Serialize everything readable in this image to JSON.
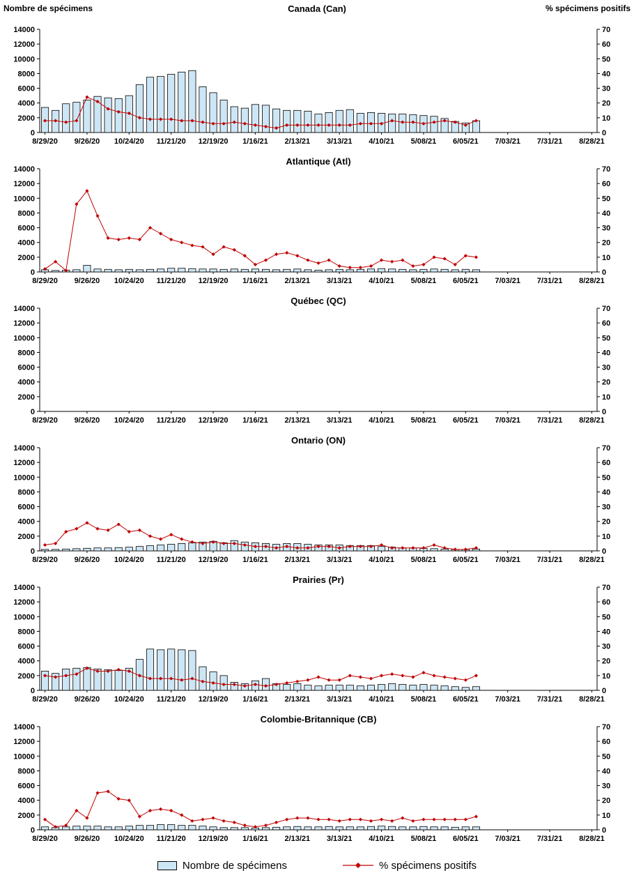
{
  "page": {
    "left_axis_title": "Nombre de spécimens",
    "right_axis_title": "% spécimens positifs"
  },
  "legend": {
    "bars_label": "Nombre de spécimens",
    "line_label": "% spécimens positifs"
  },
  "colors": {
    "bar_fill": "#CDE6F5",
    "bar_border": "#000000",
    "line": "#C00000"
  },
  "axis": {
    "n_slots": 53,
    "x_tick_every": 4,
    "x_tick_labels": [
      "8/29/20",
      "9/26/20",
      "10/24/20",
      "11/21/20",
      "12/19/20",
      "1/16/21",
      "2/13/21",
      "3/13/21",
      "4/10/21",
      "5/08/21",
      "6/05/21",
      "7/03/21",
      "7/31/21",
      "8/28/21"
    ],
    "left": {
      "min": 0,
      "max": 14000,
      "step": 2000
    },
    "right": {
      "min": 0,
      "max": 70,
      "step": 10
    },
    "grid": false
  },
  "x_weekly": [
    "8/29/20",
    "9/05/20",
    "9/12/20",
    "9/19/20",
    "9/26/20",
    "10/03/20",
    "10/10/20",
    "10/17/20",
    "10/24/20",
    "10/31/20",
    "11/07/20",
    "11/14/20",
    "11/21/20",
    "11/28/20",
    "12/05/20",
    "12/12/20",
    "12/19/20",
    "12/26/20",
    "1/02/21",
    "1/09/21",
    "1/16/21",
    "1/23/21",
    "1/30/21",
    "2/06/21",
    "2/13/21",
    "2/20/21",
    "2/27/21",
    "3/06/21",
    "3/13/21",
    "3/20/21",
    "3/27/21",
    "4/03/21",
    "4/10/21",
    "4/17/21",
    "4/24/21",
    "5/01/21",
    "5/08/21",
    "5/15/21",
    "5/22/21",
    "5/29/21",
    "6/05/21",
    "6/12/21"
  ],
  "chart_data": [
    {
      "type": "bar+line",
      "title": "Canada (Can)",
      "bar_series": "Nombre de spécimens",
      "line_series": "% spécimens positifs",
      "bars": [
        3400,
        3000,
        3900,
        4100,
        4400,
        4900,
        4700,
        4600,
        5000,
        6500,
        7500,
        7600,
        7900,
        8200,
        8400,
        6200,
        5400,
        4400,
        3500,
        3300,
        3800,
        3700,
        3200,
        3000,
        3000,
        2900,
        2500,
        2700,
        3000,
        3100,
        2600,
        2700,
        2600,
        2500,
        2500,
        2400,
        2300,
        2200,
        1900,
        1500,
        1300,
        1600
      ],
      "line": [
        8,
        8,
        7,
        8,
        24,
        21,
        16,
        14,
        13,
        10,
        9,
        9,
        9,
        8,
        8,
        7,
        6,
        6,
        7,
        6,
        5,
        4,
        3,
        5,
        5,
        5,
        5,
        5,
        5,
        5,
        6,
        6,
        6,
        8,
        7,
        7,
        6,
        7,
        8,
        7,
        5,
        8
      ]
    },
    {
      "type": "bar+line",
      "title": "Atlantique (Atl)",
      "bar_series": "Nombre de spécimens",
      "line_series": "% spécimens positifs",
      "bars": [
        300,
        200,
        250,
        300,
        900,
        400,
        350,
        300,
        350,
        300,
        350,
        400,
        500,
        500,
        450,
        400,
        400,
        350,
        400,
        350,
        400,
        350,
        300,
        350,
        400,
        300,
        250,
        300,
        350,
        300,
        350,
        400,
        450,
        400,
        350,
        300,
        350,
        400,
        350,
        300,
        350,
        300
      ],
      "line": [
        2,
        7,
        1,
        46,
        55,
        38,
        23,
        22,
        23,
        22,
        30,
        26,
        22,
        20,
        18,
        17,
        12,
        17,
        15,
        11,
        5,
        8,
        12,
        13,
        11,
        8,
        6,
        8,
        4,
        3,
        3,
        4,
        8,
        7,
        8,
        4,
        5,
        10,
        9,
        5,
        11,
        10
      ]
    },
    {
      "type": "bar+line",
      "title": "Québec (QC)",
      "bar_series": "Nombre de spécimens",
      "line_series": "% spécimens positifs",
      "bars": [],
      "line": []
    },
    {
      "type": "bar+line",
      "title": "Ontario (ON)",
      "bar_series": "Nombre de spécimens",
      "line_series": "% spécimens positifs",
      "bars": [
        200,
        200,
        250,
        300,
        350,
        400,
        400,
        450,
        500,
        600,
        700,
        800,
        900,
        1000,
        1100,
        1200,
        1300,
        1100,
        1400,
        1200,
        1100,
        1000,
        900,
        1000,
        1000,
        900,
        800,
        800,
        800,
        700,
        700,
        700,
        600,
        500,
        400,
        400,
        350,
        300,
        250,
        200,
        200,
        250
      ],
      "line": [
        4,
        5,
        13,
        15,
        19,
        15,
        14,
        18,
        13,
        14,
        10,
        8,
        11,
        8,
        6,
        5,
        6,
        5,
        5,
        4,
        3,
        3,
        2,
        3,
        2,
        2,
        3,
        3,
        2,
        3,
        3,
        3,
        4,
        2,
        2,
        2,
        2,
        4,
        2,
        1,
        1,
        2
      ]
    },
    {
      "type": "bar+line",
      "title": "Prairies (Pr)",
      "bar_series": "Nombre de spécimens",
      "line_series": "% spécimens positifs",
      "bars": [
        2600,
        2300,
        2900,
        3000,
        3100,
        2900,
        2800,
        2700,
        3000,
        4200,
        5600,
        5500,
        5600,
        5500,
        5400,
        3200,
        2500,
        2000,
        1100,
        900,
        1300,
        1600,
        900,
        800,
        900,
        700,
        600,
        700,
        700,
        700,
        600,
        700,
        800,
        900,
        800,
        700,
        800,
        700,
        600,
        500,
        400,
        500
      ],
      "line": [
        10,
        9,
        10,
        11,
        15,
        13,
        13,
        14,
        13,
        10,
        8,
        8,
        8,
        7,
        8,
        6,
        5,
        4,
        4,
        3,
        4,
        3,
        4,
        5,
        6,
        7,
        9,
        7,
        7,
        10,
        9,
        8,
        10,
        11,
        10,
        9,
        12,
        10,
        9,
        8,
        7,
        10
      ]
    },
    {
      "type": "bar+line",
      "title": "Colombie-Britannique (CB)",
      "bar_series": "Nombre de spécimens",
      "line_series": "% spécimens positifs",
      "bars": [
        400,
        300,
        400,
        500,
        500,
        500,
        400,
        400,
        500,
        600,
        600,
        700,
        700,
        600,
        600,
        500,
        400,
        300,
        300,
        300,
        250,
        300,
        350,
        400,
        450,
        400,
        400,
        450,
        400,
        400,
        400,
        450,
        500,
        450,
        400,
        400,
        450,
        400,
        400,
        350,
        400,
        400
      ],
      "line": [
        7,
        2,
        3,
        13,
        8,
        25,
        26,
        21,
        20,
        9,
        13,
        14,
        13,
        10,
        6,
        7,
        8,
        6,
        5,
        3,
        2,
        3,
        5,
        7,
        8,
        8,
        7,
        7,
        6,
        7,
        7,
        6,
        7,
        6,
        8,
        6,
        7,
        7,
        7,
        7,
        7,
        9
      ]
    }
  ]
}
